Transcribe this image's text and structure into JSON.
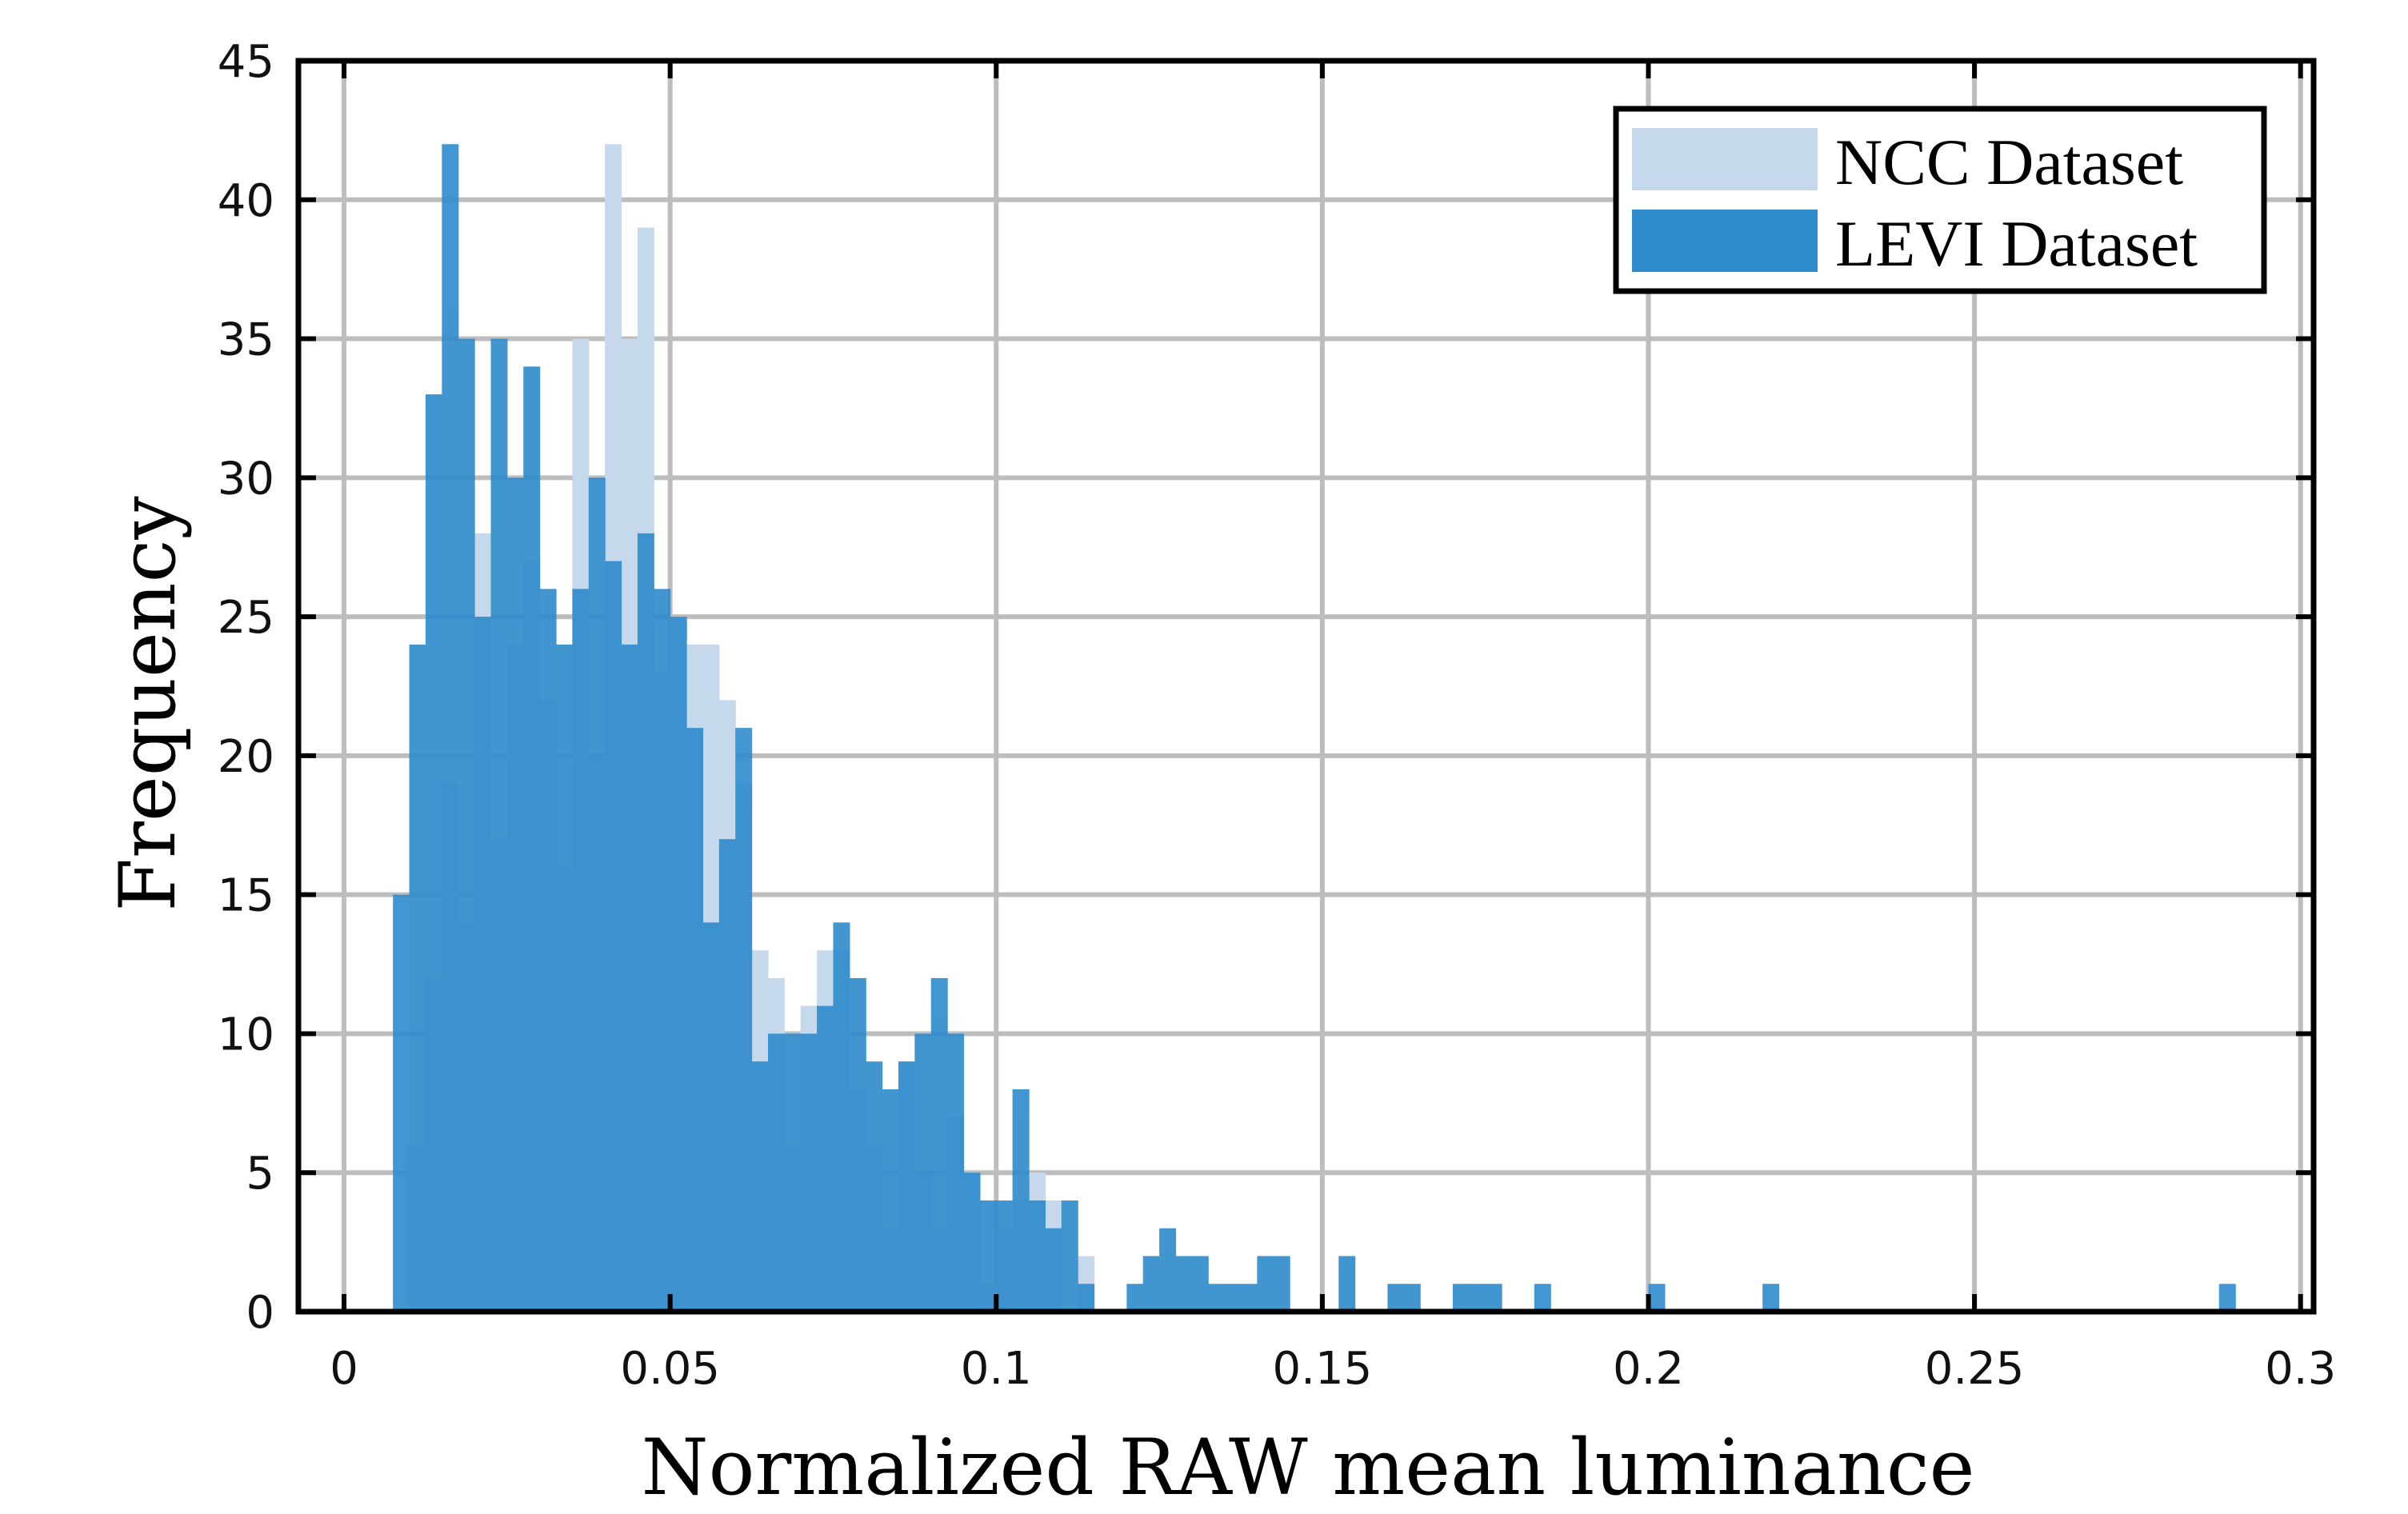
{
  "chart_data": {
    "type": "bar",
    "xlabel": "Normalized RAW mean luminance",
    "ylabel": "Frequency",
    "xlim": [
      -0.007,
      0.302
    ],
    "ylim": [
      0,
      45
    ],
    "xticks": [
      0,
      0.05,
      0.1,
      0.15,
      0.2,
      0.25,
      0.3
    ],
    "xtick_labels": [
      "0",
      "0.05",
      "0.1",
      "0.15",
      "0.2",
      "0.25",
      "0.3"
    ],
    "yticks": [
      0,
      5,
      10,
      15,
      20,
      25,
      30,
      35,
      40,
      45
    ],
    "ytick_labels": [
      "0",
      "5",
      "10",
      "15",
      "20",
      "25",
      "30",
      "35",
      "40",
      "45"
    ],
    "grid": true,
    "legend_position": "top-right",
    "bin_width": 0.0025,
    "series": [
      {
        "name": "NCC Dataset",
        "color": "#c6d9ec",
        "bin_start": [
          0.0075,
          0.01,
          0.0125,
          0.015,
          0.0175,
          0.02,
          0.0225,
          0.025,
          0.0275,
          0.03,
          0.0325,
          0.035,
          0.0375,
          0.04,
          0.0425,
          0.045,
          0.0475,
          0.05,
          0.0525,
          0.055,
          0.0575,
          0.06,
          0.0625,
          0.065,
          0.0675,
          0.07,
          0.0725,
          0.075,
          0.0775,
          0.08,
          0.0825,
          0.085,
          0.0875,
          0.09,
          0.0925,
          0.095,
          0.0975,
          0.1,
          0.1025,
          0.105,
          0.1075,
          0.11,
          0.1125,
          0.115,
          0.1175
        ],
        "values": [
          0,
          6,
          12,
          19,
          14,
          28,
          17,
          24,
          27,
          22,
          16,
          35,
          20,
          42,
          35,
          39,
          23,
          25,
          24,
          24,
          22,
          19,
          13,
          12,
          6,
          11,
          13,
          13,
          8,
          6,
          3,
          9,
          5,
          3,
          7,
          5,
          1,
          3,
          4,
          5,
          4,
          0,
          2,
          0,
          0
        ]
      },
      {
        "name": "LEVI Dataset",
        "color": "#2e8bcc",
        "bin_start": [
          0.0075,
          0.01,
          0.0125,
          0.015,
          0.0175,
          0.02,
          0.0225,
          0.025,
          0.0275,
          0.03,
          0.0325,
          0.035,
          0.0375,
          0.04,
          0.0425,
          0.045,
          0.0475,
          0.05,
          0.0525,
          0.055,
          0.0575,
          0.06,
          0.0625,
          0.065,
          0.0675,
          0.07,
          0.0725,
          0.075,
          0.0775,
          0.08,
          0.0825,
          0.085,
          0.0875,
          0.09,
          0.0925,
          0.095,
          0.0975,
          0.1,
          0.1025,
          0.105,
          0.1075,
          0.11,
          0.1125,
          0.115,
          0.1175,
          0.12,
          0.1225,
          0.125,
          0.1275,
          0.13,
          0.1325,
          0.135,
          0.1375,
          0.14,
          0.1425,
          0.1525,
          0.16,
          0.1625,
          0.17,
          0.1725,
          0.175,
          0.1825,
          0.2,
          0.2175,
          0.2875
        ],
        "values": [
          15,
          24,
          33,
          42,
          35,
          25,
          35,
          30,
          34,
          26,
          24,
          26,
          30,
          27,
          24,
          28,
          26,
          25,
          21,
          14,
          17,
          21,
          9,
          10,
          10,
          10,
          11,
          14,
          12,
          9,
          8,
          9,
          10,
          12,
          10,
          5,
          4,
          4,
          8,
          4,
          3,
          4,
          1,
          0,
          0,
          1,
          2,
          3,
          2,
          2,
          1,
          1,
          1,
          2,
          2,
          2,
          1,
          1,
          1,
          1,
          1,
          1,
          1,
          1,
          1
        ]
      }
    ]
  }
}
